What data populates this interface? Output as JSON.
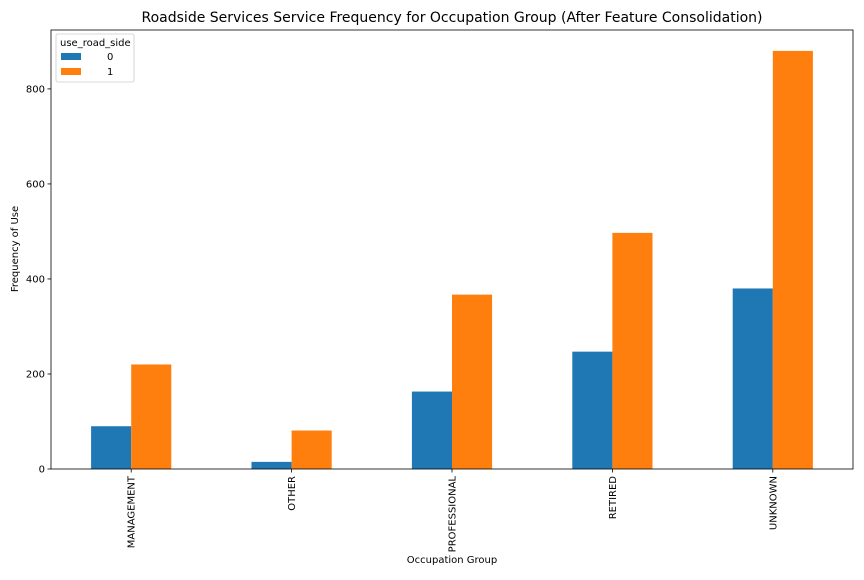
{
  "chart_data": {
    "type": "bar",
    "title": "Roadside Services Service Frequency for Occupation Group (After Feature Consolidation)",
    "xlabel": "Occupation Group",
    "ylabel": "Frequency of Use",
    "categories": [
      "MANAGEMENT",
      "OTHER",
      "PROFESSIONAL",
      "RETIRED",
      "UNKNOWN"
    ],
    "series": [
      {
        "name": "0",
        "values": [
          90,
          15,
          163,
          247,
          380
        ],
        "color": "#1f77b4"
      },
      {
        "name": "1",
        "values": [
          220,
          81,
          367,
          497,
          880
        ],
        "color": "#ff7f0e"
      }
    ],
    "ylim": [
      0,
      924
    ],
    "yticks": [
      0,
      200,
      400,
      600,
      800
    ],
    "ytick_labels": [
      "0",
      "200",
      "400",
      "600",
      "800"
    ],
    "legend": {
      "title": "use_road_side",
      "placement": "top-left"
    },
    "grid": false
  }
}
